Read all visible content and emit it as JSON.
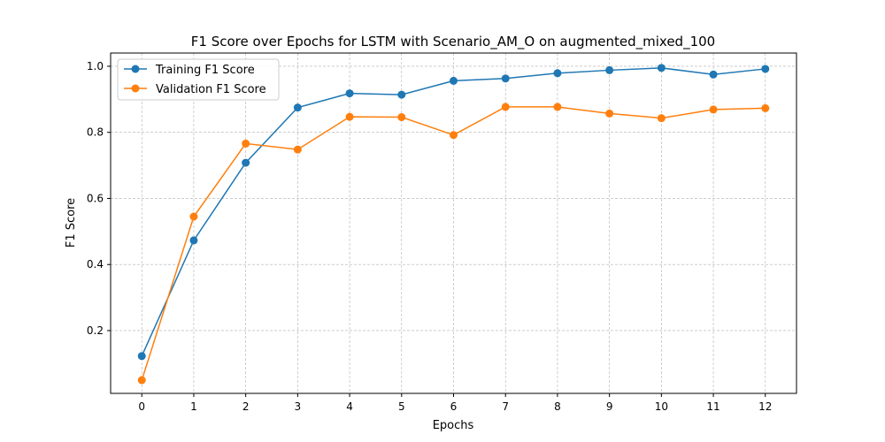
{
  "chart_data": {
    "type": "line",
    "title": "F1 Score over Epochs for LSTM with Scenario_AM_O on augmented_mixed_100",
    "xlabel": "Epochs",
    "ylabel": "F1 Score",
    "x": [
      0,
      1,
      2,
      3,
      4,
      5,
      6,
      7,
      8,
      9,
      10,
      11,
      12
    ],
    "x_ticks": [
      "0",
      "1",
      "2",
      "3",
      "4",
      "5",
      "6",
      "7",
      "8",
      "9",
      "10",
      "11",
      "12"
    ],
    "y_ticks": [
      "0.2",
      "0.4",
      "0.6",
      "0.8",
      "1.0"
    ],
    "y_tick_values": [
      0.2,
      0.4,
      0.6,
      0.8,
      1.0
    ],
    "xlim": [
      -0.6,
      12.6
    ],
    "ylim": [
      0.01,
      1.04
    ],
    "grid": true,
    "legend_position": "upper-left",
    "series": [
      {
        "name": "Training F1 Score",
        "color": "#1f77b4",
        "marker": "circle",
        "values": [
          0.123,
          0.473,
          0.708,
          0.875,
          0.918,
          0.914,
          0.956,
          0.963,
          0.979,
          0.988,
          0.995,
          0.975,
          0.992
        ]
      },
      {
        "name": "Validation F1 Score",
        "color": "#ff7f0e",
        "marker": "circle",
        "values": [
          0.05,
          0.545,
          0.766,
          0.748,
          0.847,
          0.846,
          0.792,
          0.877,
          0.877,
          0.857,
          0.843,
          0.869,
          0.873
        ]
      }
    ]
  }
}
